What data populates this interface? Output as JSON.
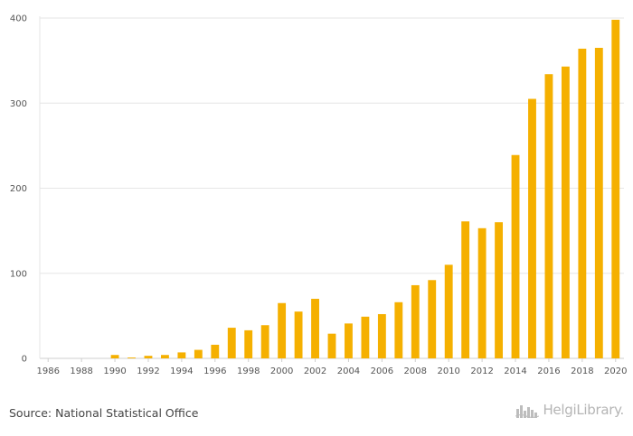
{
  "chart_data": {
    "type": "bar",
    "categories": [
      "1986",
      "1987",
      "1988",
      "1989",
      "1990",
      "1991",
      "1992",
      "1993",
      "1994",
      "1995",
      "1996",
      "1997",
      "1998",
      "1999",
      "2000",
      "2001",
      "2002",
      "2003",
      "2004",
      "2005",
      "2006",
      "2007",
      "2008",
      "2009",
      "2010",
      "2011",
      "2012",
      "2013",
      "2014",
      "2015",
      "2016",
      "2017",
      "2018",
      "2019",
      "2020"
    ],
    "values": [
      0,
      0,
      0,
      0,
      4,
      1,
      3,
      4,
      7,
      10,
      16,
      36,
      33,
      39,
      65,
      55,
      70,
      29,
      41,
      49,
      52,
      66,
      86,
      92,
      110,
      161,
      153,
      160,
      239,
      305,
      334,
      343,
      364,
      365,
      398
    ],
    "x_tick_labels": [
      "1986",
      "1988",
      "1990",
      "1992",
      "1994",
      "1996",
      "1998",
      "2000",
      "2002",
      "2004",
      "2006",
      "2008",
      "2010",
      "2012",
      "2014",
      "2016",
      "2018",
      "2020"
    ],
    "y_ticks": [
      "0",
      "100",
      "200",
      "300",
      "400"
    ],
    "ylim": [
      0,
      400
    ],
    "grid": true,
    "legend": "none",
    "bar_color": "#f5b000",
    "title": "",
    "xlabel": "",
    "ylabel": ""
  },
  "footer": {
    "source": "Source: National Statistical Office",
    "brand": "HelgiLibrary.",
    "brand_icon": "city-skyline-icon"
  }
}
